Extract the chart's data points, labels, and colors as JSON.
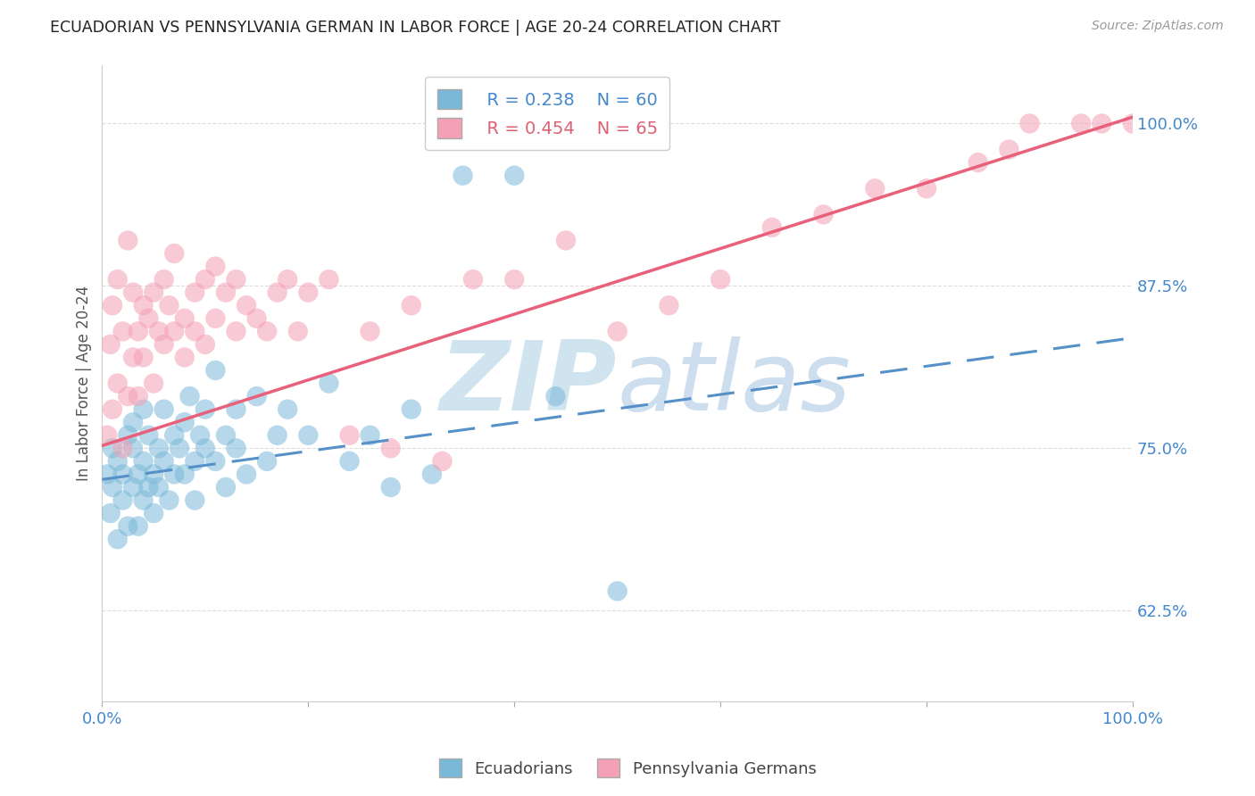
{
  "title": "ECUADORIAN VS PENNSYLVANIA GERMAN IN LABOR FORCE | AGE 20-24 CORRELATION CHART",
  "source": "Source: ZipAtlas.com",
  "ylabel": "In Labor Force | Age 20-24",
  "yticks": [
    0.625,
    0.75,
    0.875,
    1.0
  ],
  "ytick_labels": [
    "62.5%",
    "75.0%",
    "87.5%",
    "100.0%"
  ],
  "xmin": 0.0,
  "xmax": 1.0,
  "ymin": 0.555,
  "ymax": 1.045,
  "legend_R1": "R = 0.238",
  "legend_N1": "N = 60",
  "legend_R2": "R = 0.454",
  "legend_N2": "N = 65",
  "color_blue": "#7ab8d9",
  "color_pink": "#f4a0b5",
  "color_blue_line": "#5590c8",
  "color_pink_line": "#e8607a",
  "color_axis_labels": "#4488cc",
  "ecu_x": [
    0.005,
    0.008,
    0.01,
    0.01,
    0.015,
    0.015,
    0.02,
    0.02,
    0.025,
    0.025,
    0.03,
    0.03,
    0.03,
    0.035,
    0.035,
    0.04,
    0.04,
    0.04,
    0.045,
    0.045,
    0.05,
    0.05,
    0.055,
    0.055,
    0.06,
    0.06,
    0.065,
    0.07,
    0.07,
    0.075,
    0.08,
    0.08,
    0.085,
    0.09,
    0.09,
    0.095,
    0.1,
    0.1,
    0.11,
    0.11,
    0.12,
    0.12,
    0.13,
    0.13,
    0.14,
    0.15,
    0.16,
    0.17,
    0.18,
    0.2,
    0.22,
    0.24,
    0.26,
    0.28,
    0.3,
    0.32,
    0.35,
    0.4,
    0.44,
    0.5
  ],
  "ecu_y": [
    0.73,
    0.7,
    0.72,
    0.75,
    0.68,
    0.74,
    0.73,
    0.71,
    0.76,
    0.69,
    0.72,
    0.75,
    0.77,
    0.73,
    0.69,
    0.74,
    0.71,
    0.78,
    0.72,
    0.76,
    0.73,
    0.7,
    0.75,
    0.72,
    0.78,
    0.74,
    0.71,
    0.73,
    0.76,
    0.75,
    0.77,
    0.73,
    0.79,
    0.74,
    0.71,
    0.76,
    0.75,
    0.78,
    0.74,
    0.81,
    0.76,
    0.72,
    0.78,
    0.75,
    0.73,
    0.79,
    0.74,
    0.76,
    0.78,
    0.76,
    0.8,
    0.74,
    0.76,
    0.72,
    0.78,
    0.73,
    0.96,
    0.96,
    0.79,
    0.64
  ],
  "penn_x": [
    0.005,
    0.008,
    0.01,
    0.01,
    0.015,
    0.015,
    0.02,
    0.02,
    0.025,
    0.025,
    0.03,
    0.03,
    0.035,
    0.035,
    0.04,
    0.04,
    0.045,
    0.05,
    0.05,
    0.055,
    0.06,
    0.06,
    0.065,
    0.07,
    0.07,
    0.08,
    0.08,
    0.09,
    0.09,
    0.1,
    0.1,
    0.11,
    0.11,
    0.12,
    0.13,
    0.13,
    0.14,
    0.15,
    0.16,
    0.17,
    0.18,
    0.19,
    0.2,
    0.22,
    0.24,
    0.26,
    0.28,
    0.3,
    0.33,
    0.36,
    0.4,
    0.45,
    0.5,
    0.55,
    0.6,
    0.65,
    0.7,
    0.75,
    0.8,
    0.85,
    0.88,
    0.9,
    0.95,
    0.97,
    1.0
  ],
  "penn_y": [
    0.76,
    0.83,
    0.78,
    0.86,
    0.8,
    0.88,
    0.75,
    0.84,
    0.79,
    0.91,
    0.82,
    0.87,
    0.84,
    0.79,
    0.86,
    0.82,
    0.85,
    0.8,
    0.87,
    0.84,
    0.83,
    0.88,
    0.86,
    0.84,
    0.9,
    0.85,
    0.82,
    0.87,
    0.84,
    0.83,
    0.88,
    0.85,
    0.89,
    0.87,
    0.84,
    0.88,
    0.86,
    0.85,
    0.84,
    0.87,
    0.88,
    0.84,
    0.87,
    0.88,
    0.76,
    0.84,
    0.75,
    0.86,
    0.74,
    0.88,
    0.88,
    0.91,
    0.84,
    0.86,
    0.88,
    0.92,
    0.93,
    0.95,
    0.95,
    0.97,
    0.98,
    1.0,
    1.0,
    1.0,
    1.0
  ],
  "ecu_line_x0": 0.0,
  "ecu_line_x1": 1.0,
  "ecu_line_y0": 0.726,
  "ecu_line_y1": 0.835,
  "penn_line_x0": 0.0,
  "penn_line_x1": 1.0,
  "penn_line_y0": 0.752,
  "penn_line_y1": 1.005
}
